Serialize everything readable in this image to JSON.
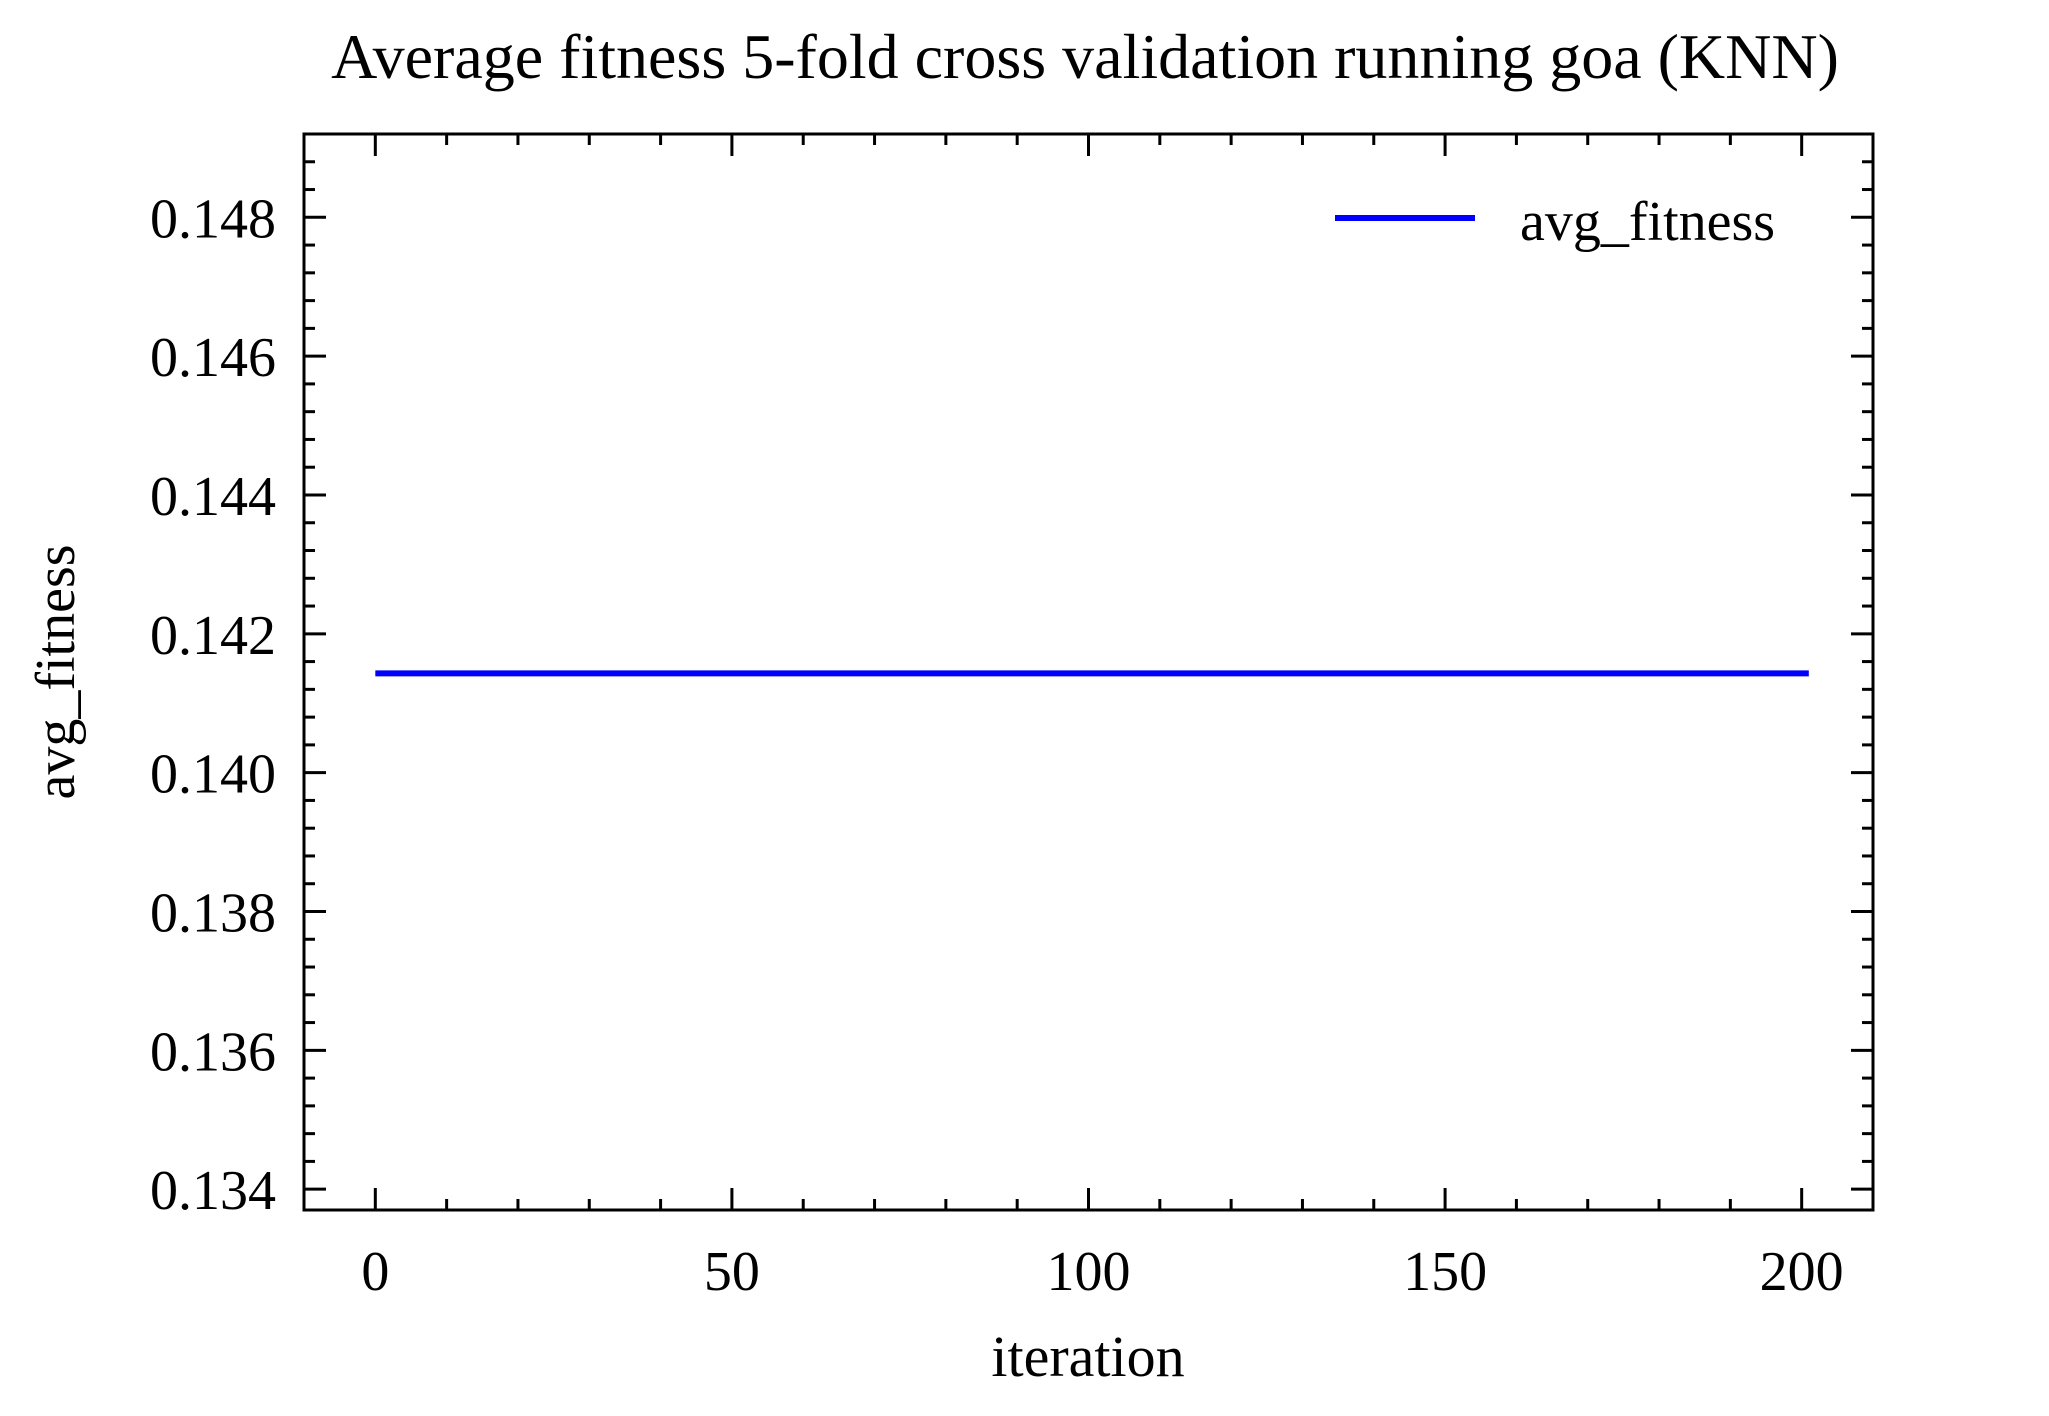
{
  "chart_data": {
    "type": "line",
    "title": "Average fitness 5-fold cross validation running goa (KNN)",
    "xlabel": "iteration",
    "ylabel": "avg_fitness",
    "xlim": [
      -10,
      210
    ],
    "ylim": [
      0.1337,
      0.1492
    ],
    "x_ticks": [
      0,
      50,
      100,
      150,
      200
    ],
    "x_tick_labels": [
      "0",
      "50",
      "100",
      "150",
      "200"
    ],
    "x_minor_step": 10,
    "y_ticks": [
      0.134,
      0.136,
      0.138,
      0.14,
      0.142,
      0.144,
      0.146,
      0.148
    ],
    "y_tick_labels": [
      "0.134",
      "0.136",
      "0.138",
      "0.140",
      "0.142",
      "0.144",
      "0.146",
      "0.148"
    ],
    "y_minor_step": 0.0004,
    "grid": false,
    "legend": {
      "position": "top-right",
      "entries": [
        "avg_fitness"
      ]
    },
    "series": [
      {
        "name": "avg_fitness",
        "color": "#0000ff",
        "x": [
          0,
          201
        ],
        "y": [
          0.14143,
          0.14143
        ]
      }
    ]
  }
}
